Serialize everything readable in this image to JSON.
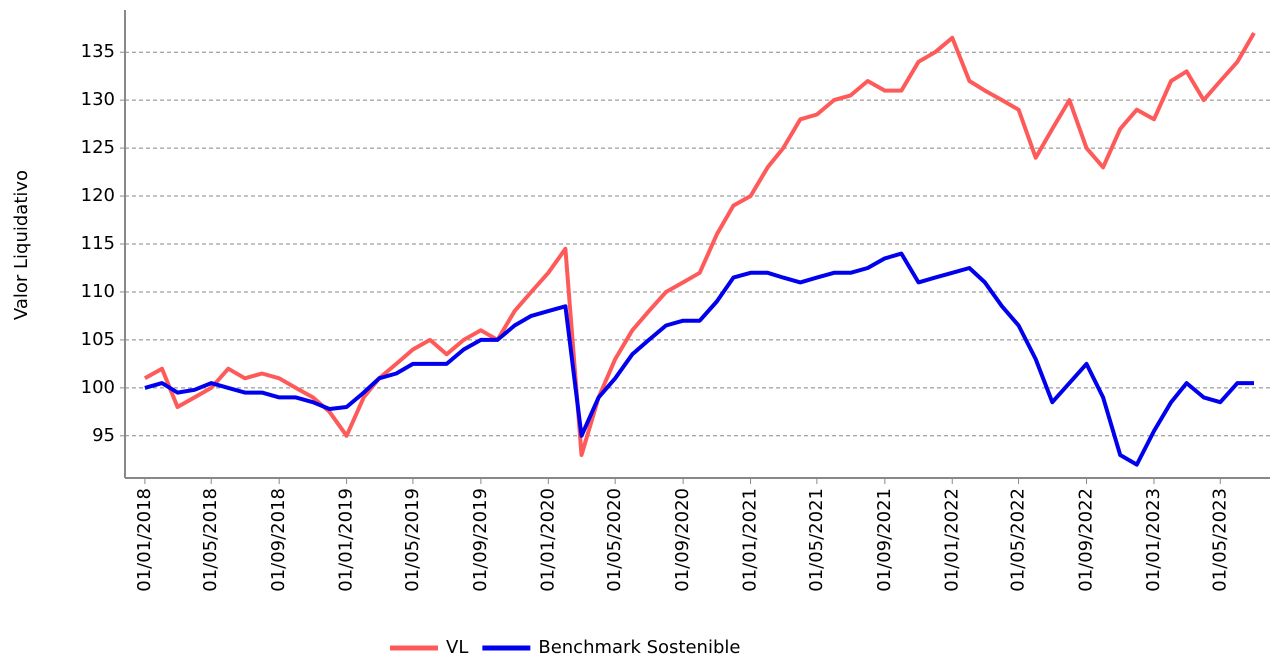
{
  "chart_data": {
    "type": "line",
    "y_label": "Valor Liquidativo",
    "x": [
      "01/01/2018",
      "01/02/2018",
      "01/03/2018",
      "01/04/2018",
      "01/05/2018",
      "01/06/2018",
      "01/07/2018",
      "01/08/2018",
      "01/09/2018",
      "01/10/2018",
      "01/11/2018",
      "01/12/2018",
      "01/01/2019",
      "01/02/2019",
      "01/03/2019",
      "01/04/2019",
      "01/05/2019",
      "01/06/2019",
      "01/07/2019",
      "01/08/2019",
      "01/09/2019",
      "01/10/2019",
      "01/11/2019",
      "01/12/2019",
      "01/01/2020",
      "01/02/2020",
      "01/03/2020",
      "01/04/2020",
      "01/05/2020",
      "01/06/2020",
      "01/07/2020",
      "01/08/2020",
      "01/09/2020",
      "01/10/2020",
      "01/11/2020",
      "01/12/2020",
      "01/01/2021",
      "01/02/2021",
      "01/03/2021",
      "01/04/2021",
      "01/05/2021",
      "01/06/2021",
      "01/07/2021",
      "01/08/2021",
      "01/09/2021",
      "01/10/2021",
      "01/11/2021",
      "01/12/2021",
      "01/01/2022",
      "01/02/2022",
      "01/03/2022",
      "01/04/2022",
      "01/05/2022",
      "01/06/2022",
      "01/07/2022",
      "01/08/2022",
      "01/09/2022",
      "01/10/2022",
      "01/11/2022",
      "01/12/2022",
      "01/01/2023",
      "01/02/2023",
      "01/03/2023",
      "01/04/2023",
      "01/05/2023",
      "01/06/2023",
      "01/07/2023"
    ],
    "series": [
      {
        "name": "VL",
        "color": "#ff5a5a",
        "values": [
          101,
          102,
          98,
          99,
          100,
          102,
          101,
          101.5,
          101,
          100,
          99,
          97.5,
          95,
          99,
          101,
          102.5,
          104,
          105,
          103.5,
          105,
          106,
          105,
          108,
          110,
          112,
          114.5,
          93,
          99,
          103,
          106,
          108,
          110,
          111,
          112,
          116,
          119,
          120,
          123,
          125,
          128,
          128.5,
          130,
          130.5,
          132,
          131,
          131,
          134,
          135,
          136.5,
          132,
          131,
          130,
          129,
          124,
          127,
          130,
          125,
          123,
          127,
          129,
          128,
          132,
          133,
          130,
          132,
          134,
          137
        ]
      },
      {
        "name": "Benchmark Sostenible",
        "color": "#0000ee",
        "values": [
          100,
          100.5,
          99.5,
          99.8,
          100.5,
          100,
          99.5,
          99.5,
          99,
          99,
          98.5,
          97.8,
          98,
          99.5,
          101,
          101.5,
          102.5,
          102.5,
          102.5,
          104,
          105,
          105,
          106.5,
          107.5,
          108,
          108.5,
          95,
          99,
          101,
          103.5,
          105,
          106.5,
          107,
          107,
          109,
          111.5,
          112,
          112,
          111.5,
          111,
          111.5,
          112,
          112,
          112.5,
          113.5,
          114,
          111,
          111.5,
          112,
          112.5,
          111,
          108.5,
          106.5,
          103,
          98.5,
          100.5,
          102.5,
          99,
          93,
          92,
          95.5,
          98.5,
          100.5,
          99,
          98.5,
          100.5,
          100.5
        ]
      }
    ],
    "xlim": [
      "26/11/2017",
      "30/07/2023"
    ],
    "xticks": [
      "01/01/2018",
      "01/05/2018",
      "01/09/2018",
      "01/01/2019",
      "01/05/2019",
      "01/09/2019",
      "01/01/2020",
      "01/05/2020",
      "01/09/2020",
      "01/01/2021",
      "01/05/2021",
      "01/09/2021",
      "01/01/2022",
      "01/05/2022",
      "01/09/2022",
      "01/01/2023",
      "01/05/2023"
    ],
    "ylim": [
      90.6,
      139.4
    ],
    "yticks": [
      95,
      100,
      105,
      110,
      115,
      120,
      125,
      130,
      135
    ],
    "grid": true,
    "legend": "bottom"
  }
}
